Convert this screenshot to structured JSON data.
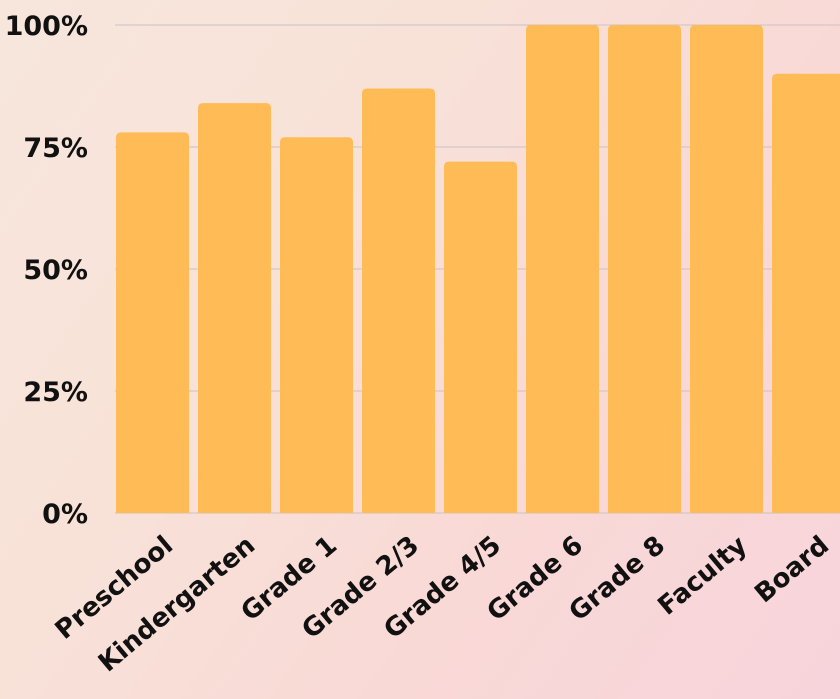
{
  "chart_data": {
    "type": "bar",
    "title": "",
    "xlabel": "",
    "ylabel": "",
    "categories": [
      "Preschool",
      "Kindergarten",
      "Grade 1",
      "Grade 2/3",
      "Grade 4/5",
      "Grade 6",
      "Grade 8",
      "Faculty",
      "Board"
    ],
    "values": [
      78,
      84,
      77,
      87,
      72,
      100,
      100,
      100,
      90
    ],
    "value_format": "percent",
    "ylim": [
      0,
      100
    ],
    "yticks": [
      0,
      25,
      50,
      75,
      100
    ],
    "ytick_labels": [
      "0%",
      "25%",
      "50%",
      "75%",
      "100%"
    ],
    "grid": true,
    "legend": "none",
    "colors": {
      "bar": "#ffbb55",
      "grid": "#c9c2c4",
      "text": "#111111"
    }
  }
}
